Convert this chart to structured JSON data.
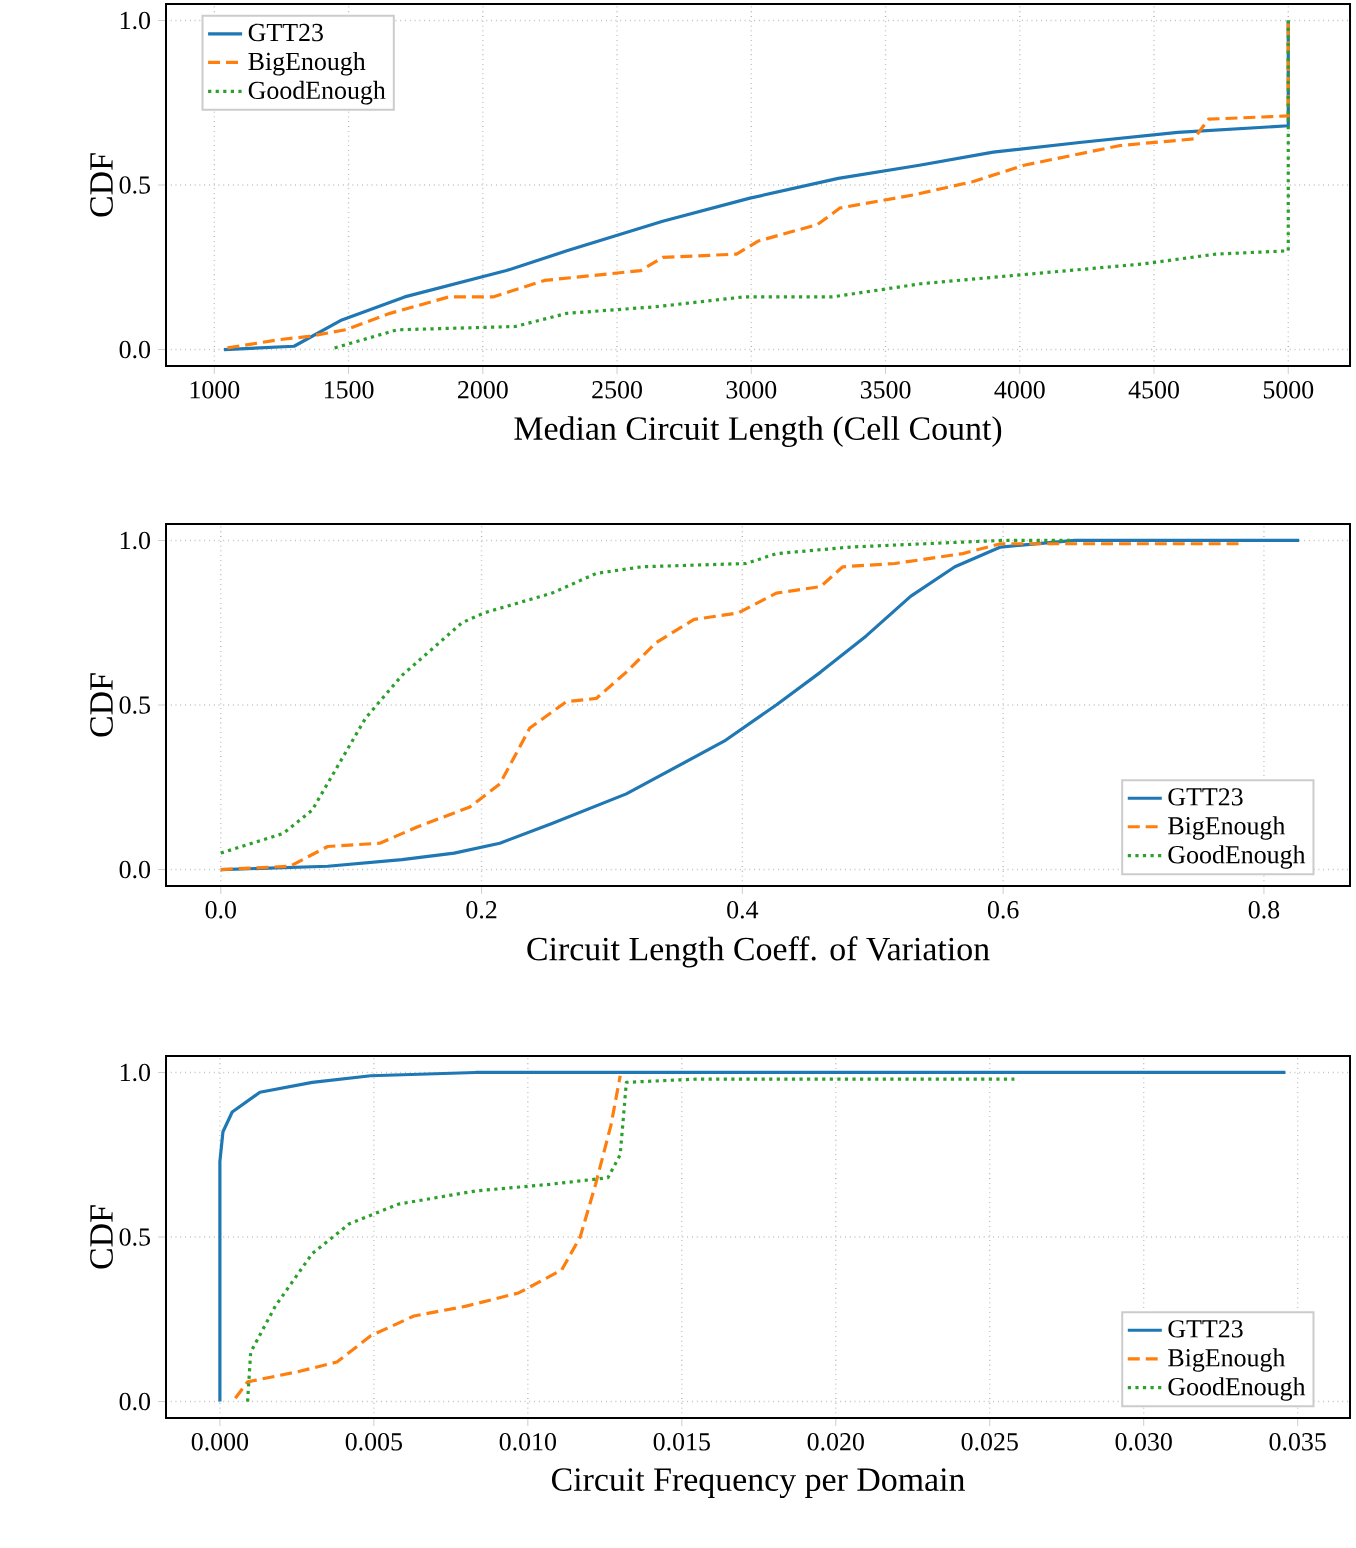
{
  "chart_data": [
    {
      "type": "line",
      "xlabel": "Median Circuit Length (Cell Count)",
      "ylabel": "CDF",
      "xlim": [
        820,
        5230
      ],
      "ylim": [
        -0.05,
        1.05
      ],
      "xticks": [
        1000,
        1500,
        2000,
        2500,
        3000,
        3500,
        4000,
        4500,
        5000
      ],
      "yticks": [
        {
          "value": 0,
          "label": "0.0"
        },
        {
          "value": 0.5,
          "label": "0.5"
        },
        {
          "value": 1,
          "label": "1.0"
        }
      ],
      "grid": true,
      "legend": "top left",
      "marker": "none",
      "series": [
        {
          "name": "GTT23",
          "color": "#1f77b4",
          "line_style": "solid",
          "x": [
            1036,
            1297,
            1475,
            1709,
            2088,
            2313,
            2670,
            2995,
            3324,
            3626,
            3901,
            4231,
            4588,
            5000,
            5000
          ],
          "values": [
            0,
            0.01,
            0.09,
            0.16,
            0.24,
            0.3,
            0.39,
            0.46,
            0.52,
            0.56,
            0.6,
            0.63,
            0.66,
            0.68,
            1.0
          ]
        },
        {
          "name": "BigEnough",
          "color": "#ff7f0e",
          "line_style": "dashed",
          "x": [
            1049,
            1242,
            1352,
            1489,
            1654,
            1874,
            2038,
            2230,
            2588,
            2670,
            2945,
            3027,
            3247,
            3330,
            3604,
            3824,
            4016,
            4374,
            4648,
            4703,
            5000,
            5000
          ],
          "values": [
            0.005,
            0.03,
            0.04,
            0.06,
            0.11,
            0.16,
            0.16,
            0.21,
            0.24,
            0.28,
            0.29,
            0.33,
            0.38,
            0.43,
            0.47,
            0.51,
            0.56,
            0.62,
            0.64,
            0.7,
            0.71,
            1.0
          ]
        },
        {
          "name": "GoodEnough",
          "color": "#2ca02c",
          "line_style": "dotted",
          "x": [
            1448,
            1681,
            2121,
            2313,
            2643,
            2973,
            3302,
            3632,
            4044,
            4456,
            4731,
            5000,
            5000
          ],
          "values": [
            0.005,
            0.06,
            0.07,
            0.11,
            0.13,
            0.16,
            0.16,
            0.2,
            0.23,
            0.26,
            0.29,
            0.3,
            1.0
          ]
        }
      ]
    },
    {
      "type": "line",
      "xlabel": "Circuit Length Coeff. of Variation",
      "ylabel": "CDF",
      "xlim": [
        -0.042,
        0.866
      ],
      "ylim": [
        -0.05,
        1.05
      ],
      "xticks": [
        {
          "value": 0,
          "label": "0.0"
        },
        {
          "value": 0.2,
          "label": "0.2"
        },
        {
          "value": 0.4,
          "label": "0.4"
        },
        {
          "value": 0.6,
          "label": "0.6"
        },
        {
          "value": 0.8,
          "label": "0.8"
        }
      ],
      "yticks": [
        {
          "value": 0,
          "label": "0.0"
        },
        {
          "value": 0.5,
          "label": "0.5"
        },
        {
          "value": 1,
          "label": "1.0"
        }
      ],
      "grid": true,
      "legend": "bottom right",
      "marker": "none",
      "series": [
        {
          "name": "GTT23",
          "color": "#1f77b4",
          "line_style": "solid",
          "x": [
            0,
            0.082,
            0.139,
            0.179,
            0.214,
            0.254,
            0.311,
            0.386,
            0.426,
            0.46,
            0.495,
            0.529,
            0.563,
            0.598,
            0.655,
            0.827
          ],
          "values": [
            0,
            0.01,
            0.03,
            0.05,
            0.08,
            0.14,
            0.23,
            0.39,
            0.5,
            0.6,
            0.71,
            0.83,
            0.92,
            0.98,
            1.0,
            1.0
          ]
        },
        {
          "name": "BigEnough",
          "color": "#ff7f0e",
          "line_style": "dashed",
          "x": [
            0,
            0.053,
            0.082,
            0.122,
            0.151,
            0.191,
            0.214,
            0.237,
            0.265,
            0.288,
            0.311,
            0.334,
            0.363,
            0.397,
            0.426,
            0.46,
            0.477,
            0.517,
            0.569,
            0.598,
            0.781
          ],
          "values": [
            0,
            0.01,
            0.07,
            0.08,
            0.13,
            0.19,
            0.26,
            0.43,
            0.51,
            0.52,
            0.6,
            0.69,
            0.76,
            0.78,
            0.84,
            0.86,
            0.92,
            0.93,
            0.96,
            0.99,
            0.99
          ]
        },
        {
          "name": "GoodEnough",
          "color": "#2ca02c",
          "line_style": "dotted",
          "x": [
            0,
            0.048,
            0.07,
            0.111,
            0.139,
            0.185,
            0.202,
            0.254,
            0.288,
            0.323,
            0.403,
            0.426,
            0.483,
            0.54,
            0.598,
            0.655
          ],
          "values": [
            0.05,
            0.11,
            0.18,
            0.46,
            0.59,
            0.75,
            0.78,
            0.84,
            0.9,
            0.92,
            0.93,
            0.96,
            0.98,
            0.99,
            1.0,
            1.0
          ]
        }
      ]
    },
    {
      "type": "line",
      "xlabel": "Circuit Frequency per Domain",
      "ylabel": "CDF",
      "xlim": [
        -0.00175,
        0.0367
      ],
      "ylim": [
        -0.05,
        1.05
      ],
      "xticks": [
        {
          "value": 0,
          "label": "0.000"
        },
        {
          "value": 0.005,
          "label": "0.005"
        },
        {
          "value": 0.01,
          "label": "0.010"
        },
        {
          "value": 0.015,
          "label": "0.015"
        },
        {
          "value": 0.02,
          "label": "0.020"
        },
        {
          "value": 0.025,
          "label": "0.025"
        },
        {
          "value": 0.03,
          "label": "0.030"
        },
        {
          "value": 0.035,
          "label": "0.035"
        }
      ],
      "yticks": [
        {
          "value": 0,
          "label": "0.0"
        },
        {
          "value": 0.5,
          "label": "0.5"
        },
        {
          "value": 1,
          "label": "1.0"
        }
      ],
      "grid": true,
      "legend": "bottom right",
      "marker": "none",
      "series": [
        {
          "name": "GTT23",
          "color": "#1f77b4",
          "line_style": "solid",
          "x": [
            0,
            0,
            0.0001,
            0.0004,
            0.0013,
            0.003,
            0.0049,
            0.0083,
            0.0346
          ],
          "values": [
            0,
            0.73,
            0.82,
            0.88,
            0.94,
            0.97,
            0.99,
            1.0,
            1.0
          ]
        },
        {
          "name": "BigEnough",
          "color": "#ff7f0e",
          "line_style": "dashed",
          "x": [
            0.0005,
            0.0009,
            0.0025,
            0.0038,
            0.0049,
            0.0063,
            0.008,
            0.0097,
            0.0111,
            0.0117,
            0.0122,
            0.0127,
            0.013
          ],
          "values": [
            0.01,
            0.06,
            0.09,
            0.12,
            0.2,
            0.26,
            0.29,
            0.33,
            0.4,
            0.5,
            0.66,
            0.84,
            0.99
          ]
        },
        {
          "name": "GoodEnough",
          "color": "#2ca02c",
          "line_style": "dotted",
          "x": [
            0.0009,
            0.001,
            0.0018,
            0.003,
            0.0042,
            0.0058,
            0.0083,
            0.0107,
            0.0126,
            0.013,
            0.0132,
            0.0155,
            0.0258
          ],
          "values": [
            0,
            0.15,
            0.29,
            0.45,
            0.54,
            0.6,
            0.64,
            0.66,
            0.68,
            0.75,
            0.97,
            0.98,
            0.98
          ]
        }
      ]
    }
  ]
}
